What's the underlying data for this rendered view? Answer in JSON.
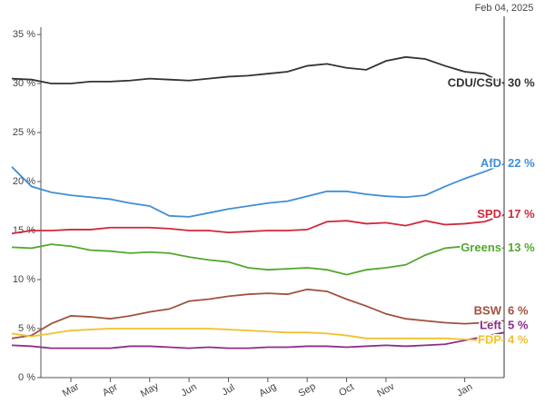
{
  "chart_data": {
    "type": "line",
    "categories": [
      null,
      null,
      null,
      "Mar",
      null,
      "Apr",
      null,
      "May",
      null,
      "Jun",
      null,
      "Jul",
      null,
      "Aug",
      null,
      "Sep",
      null,
      "Oct",
      null,
      "Nov",
      null,
      null,
      null,
      "Jan",
      null,
      "Feb 04, 2025"
    ],
    "ylim": [
      0,
      35
    ],
    "yticks": [
      {
        "value": 0,
        "label": "0 %"
      },
      {
        "value": 5,
        "label": "5 %"
      },
      {
        "value": 10,
        "label": "10 %"
      },
      {
        "value": 15,
        "label": "15 %"
      },
      {
        "value": 20,
        "label": "20 %"
      },
      {
        "value": 25,
        "label": "25 %"
      },
      {
        "value": 30,
        "label": "30 %"
      },
      {
        "value": 35,
        "label": "35 %"
      }
    ],
    "series": [
      {
        "name": "CDU/CSU",
        "color": "#333333",
        "values": [
          30.5,
          30.4,
          30,
          30,
          30.2,
          30.2,
          30.3,
          30.5,
          30.4,
          30.3,
          30.5,
          30.7,
          30.8,
          31,
          31.2,
          31.8,
          32,
          31.6,
          31.4,
          32.3,
          32.7,
          32.5,
          31.8,
          31.2,
          31,
          30
        ],
        "value_labels": [
          null,
          null,
          null,
          null,
          null,
          null,
          null,
          null,
          null,
          null,
          null,
          null,
          null,
          null,
          null,
          null,
          null,
          null,
          null,
          null,
          null,
          null,
          null,
          null,
          null,
          "30 %"
        ]
      },
      {
        "name": "AfD",
        "color": "#3f8fd8",
        "values": [
          21.5,
          19.5,
          18.9,
          18.6,
          18.4,
          18.2,
          17.8,
          17.5,
          16.5,
          16.4,
          16.8,
          17.2,
          17.5,
          17.8,
          18,
          18.5,
          19,
          19,
          18.7,
          18.5,
          18.4,
          18.6,
          19.5,
          20.3,
          21,
          21.8
        ],
        "value_labels": [
          null,
          null,
          null,
          null,
          null,
          null,
          null,
          null,
          null,
          null,
          null,
          null,
          null,
          null,
          null,
          null,
          null,
          null,
          null,
          null,
          null,
          null,
          null,
          null,
          null,
          "22 %"
        ]
      },
      {
        "name": "SPD",
        "color": "#d0283a",
        "values": [
          14.7,
          15,
          15,
          15.1,
          15.1,
          15.3,
          15.3,
          15.3,
          15.2,
          15,
          15,
          14.8,
          14.9,
          15,
          15,
          15.1,
          15.9,
          16,
          15.7,
          15.8,
          15.5,
          16,
          15.6,
          15.7,
          15.9,
          16.6
        ],
        "value_labels": [
          null,
          null,
          null,
          null,
          null,
          null,
          null,
          null,
          null,
          null,
          null,
          null,
          null,
          null,
          null,
          null,
          null,
          null,
          null,
          null,
          null,
          null,
          null,
          null,
          null,
          "17 %"
        ]
      },
      {
        "name": "Greens",
        "color": "#52a82e",
        "values": [
          13.3,
          13.2,
          13.6,
          13.4,
          13,
          12.9,
          12.7,
          12.8,
          12.7,
          12.3,
          12,
          11.8,
          11.2,
          11,
          11.1,
          11.2,
          11,
          10.5,
          11,
          11.2,
          11.5,
          12.5,
          13.2,
          13.4,
          13.3,
          13.2
        ],
        "value_labels": [
          null,
          null,
          null,
          null,
          null,
          null,
          null,
          null,
          null,
          null,
          null,
          null,
          null,
          null,
          null,
          null,
          null,
          null,
          null,
          null,
          null,
          null,
          null,
          null,
          null,
          "13 %"
        ]
      },
      {
        "name": "BSW",
        "color": "#a0523d",
        "values": [
          4,
          4.3,
          5.5,
          6.3,
          6.2,
          6,
          6.3,
          6.7,
          7,
          7.8,
          8,
          8.3,
          8.5,
          8.6,
          8.5,
          9,
          8.8,
          8,
          7.3,
          6.5,
          6,
          5.8,
          5.6,
          5.5,
          5.6,
          5.8
        ],
        "value_labels": [
          null,
          null,
          null,
          null,
          null,
          null,
          null,
          null,
          null,
          null,
          null,
          null,
          null,
          null,
          null,
          null,
          null,
          null,
          null,
          null,
          null,
          null,
          null,
          null,
          null,
          "6 %"
        ]
      },
      {
        "name": "Left",
        "color": "#8e2c8c",
        "values": [
          3.3,
          3.2,
          3,
          3,
          3,
          3,
          3.2,
          3.2,
          3.1,
          3,
          3.1,
          3,
          3,
          3.1,
          3.1,
          3.2,
          3.2,
          3.1,
          3.2,
          3.3,
          3.2,
          3.3,
          3.4,
          3.8,
          4.2,
          4.6
        ],
        "value_labels": [
          null,
          null,
          null,
          null,
          null,
          null,
          null,
          null,
          null,
          null,
          null,
          null,
          null,
          null,
          null,
          null,
          null,
          null,
          null,
          null,
          null,
          null,
          null,
          null,
          null,
          "5 %"
        ]
      },
      {
        "name": "FDP",
        "color": "#f2c12e",
        "values": [
          4.5,
          4.2,
          4.5,
          4.8,
          4.9,
          5,
          5,
          5,
          5,
          5,
          5,
          4.9,
          4.8,
          4.7,
          4.6,
          4.6,
          4.5,
          4.3,
          4,
          4,
          4,
          4,
          4,
          3.9,
          3.8,
          3.8
        ],
        "value_labels": [
          null,
          null,
          null,
          null,
          null,
          null,
          null,
          null,
          null,
          null,
          null,
          null,
          null,
          null,
          null,
          null,
          null,
          null,
          null,
          null,
          null,
          null,
          null,
          null,
          null,
          "4 %"
        ]
      }
    ]
  }
}
